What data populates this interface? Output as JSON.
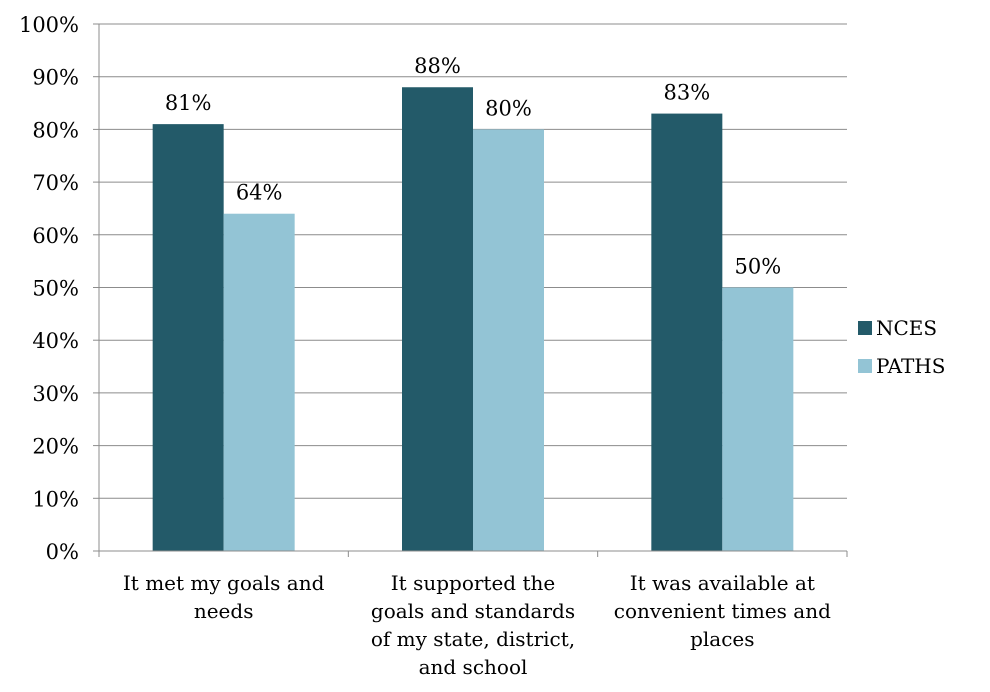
{
  "chart_data": {
    "type": "bar",
    "categories": [
      [
        "It met my goals and",
        "needs"
      ],
      [
        "It supported the",
        "goals and standards",
        "of my state, district,",
        "and school"
      ],
      [
        "It was available at",
        "convenient times and",
        "places"
      ]
    ],
    "series": [
      {
        "name": "NCES",
        "values": [
          81,
          88,
          83
        ],
        "labels": [
          "81%",
          "88%",
          "83%"
        ],
        "color": "#235a69"
      },
      {
        "name": "PATHS",
        "values": [
          64,
          80,
          50
        ],
        "labels": [
          "64%",
          "80%",
          "50%"
        ],
        "color": "#93c4d5"
      }
    ],
    "ylim": [
      0,
      100
    ],
    "yticks": [
      "0%",
      "10%",
      "20%",
      "30%",
      "40%",
      "50%",
      "60%",
      "70%",
      "80%",
      "90%",
      "100%"
    ],
    "grid": true,
    "legend": "right"
  }
}
